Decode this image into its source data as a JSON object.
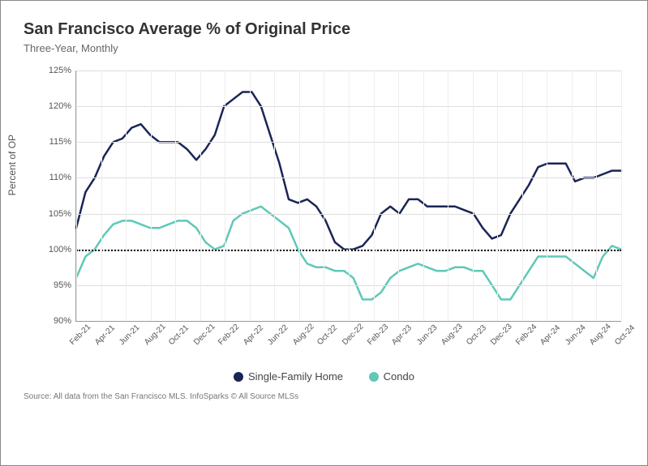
{
  "title": "San Francisco Average % of Original Price",
  "subtitle": "Three-Year, Monthly",
  "ylabel": "Percent of OP",
  "source": "Source:  All data from the San Francisco MLS. InfoSparks © All Source MLSs",
  "chart": {
    "type": "line",
    "ylim": [
      90,
      125
    ],
    "ytick_step": 5,
    "baseline": 100,
    "background": "#ffffff",
    "grid_color": "#dddddd",
    "axis_color": "#999999",
    "x_labels": [
      "Feb-21",
      "Apr-21",
      "Jun-21",
      "Aug-21",
      "Oct-21",
      "Dec-21",
      "Feb-22",
      "Apr-22",
      "Jun-22",
      "Aug-22",
      "Oct-22",
      "Dec-22",
      "Feb-23",
      "Apr-23",
      "Jun-23",
      "Aug-23",
      "Oct-23",
      "Dec-23",
      "Feb-24",
      "Apr-24",
      "Jun-24",
      "Aug-24",
      "Oct-24"
    ],
    "series": [
      {
        "name": "Single-Family Home",
        "color": "#1a2556",
        "stroke_width": 2.5,
        "data": [
          103,
          108,
          110,
          113,
          115,
          115.5,
          117,
          117.5,
          116,
          115,
          115,
          115,
          114,
          112.5,
          114,
          116,
          120,
          121,
          122,
          122,
          120,
          116,
          112,
          107,
          106.5,
          107,
          106,
          104,
          101,
          100,
          100,
          100.5,
          102,
          105,
          106,
          105,
          107,
          107,
          106,
          106,
          106,
          106,
          105.5,
          105,
          103,
          101.5,
          102,
          105,
          107,
          109,
          111.5,
          112,
          112,
          112,
          109.5,
          110,
          110,
          110.5,
          111,
          111
        ]
      },
      {
        "name": "Condo",
        "color": "#5fc8b8",
        "stroke_width": 2.5,
        "data": [
          96,
          99,
          100,
          102,
          103.5,
          104,
          104,
          103.5,
          103,
          103,
          103.5,
          104,
          104,
          103,
          101,
          100,
          100.5,
          104,
          105,
          105.5,
          106,
          105,
          104,
          103,
          100,
          98,
          97.5,
          97.5,
          97,
          97,
          96,
          93,
          93,
          94,
          96,
          97,
          97.5,
          98,
          97.5,
          97,
          97,
          97.5,
          97.5,
          97,
          97,
          95,
          93,
          93,
          95,
          97,
          99,
          99,
          99,
          99,
          98,
          97,
          96,
          99,
          100.5,
          100
        ]
      }
    ]
  },
  "legend": {
    "items": [
      {
        "label": "Single-Family Home",
        "color": "#1a2556"
      },
      {
        "label": "Condo",
        "color": "#5fc8b8"
      }
    ]
  }
}
